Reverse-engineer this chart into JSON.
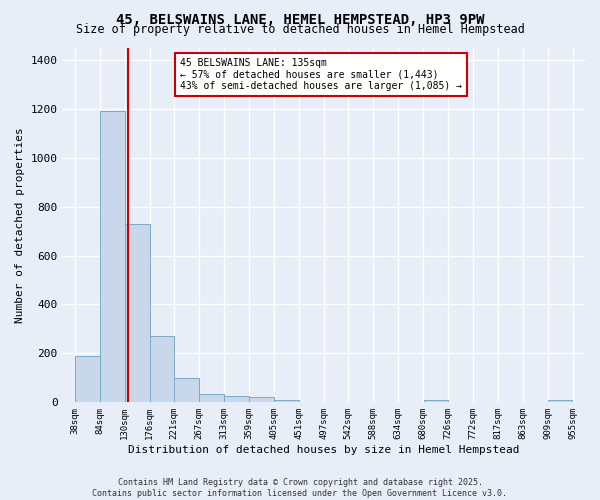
{
  "title": "45, BELSWAINS LANE, HEMEL HEMPSTEAD, HP3 9PW",
  "subtitle": "Size of property relative to detached houses in Hemel Hempstead",
  "xlabel": "Distribution of detached houses by size in Hemel Hempstead",
  "ylabel": "Number of detached properties",
  "bar_color": "#c8d8ea",
  "bar_edge_color": "#7aaac8",
  "background_color": "#e8eef8",
  "grid_color": "#ffffff",
  "annotation_box_color": "#cc0000",
  "annotation_line1": "45 BELSWAINS LANE: 135sqm",
  "annotation_line2": "← 57% of detached houses are smaller (1,443)",
  "annotation_line3": "43% of semi-detached houses are larger (1,085) →",
  "property_line_x": 135,
  "bin_edges": [
    38,
    84,
    130,
    176,
    221,
    267,
    313,
    359,
    405,
    451,
    497,
    542,
    588,
    634,
    680,
    726,
    772,
    817,
    863,
    909,
    955
  ],
  "bin_labels": [
    "38sqm",
    "84sqm",
    "130sqm",
    "176sqm",
    "221sqm",
    "267sqm",
    "313sqm",
    "359sqm",
    "405sqm",
    "451sqm",
    "497sqm",
    "542sqm",
    "588sqm",
    "634sqm",
    "680sqm",
    "726sqm",
    "772sqm",
    "817sqm",
    "863sqm",
    "909sqm",
    "955sqm"
  ],
  "counts": [
    190,
    1190,
    730,
    270,
    100,
    35,
    25,
    20,
    8,
    3,
    1,
    0,
    0,
    0,
    10,
    0,
    0,
    0,
    0,
    10
  ],
  "ylim": [
    0,
    1450
  ],
  "yticks": [
    0,
    200,
    400,
    600,
    800,
    1000,
    1200,
    1400
  ],
  "footer": "Contains HM Land Registry data © Crown copyright and database right 2025.\nContains public sector information licensed under the Open Government Licence v3.0."
}
